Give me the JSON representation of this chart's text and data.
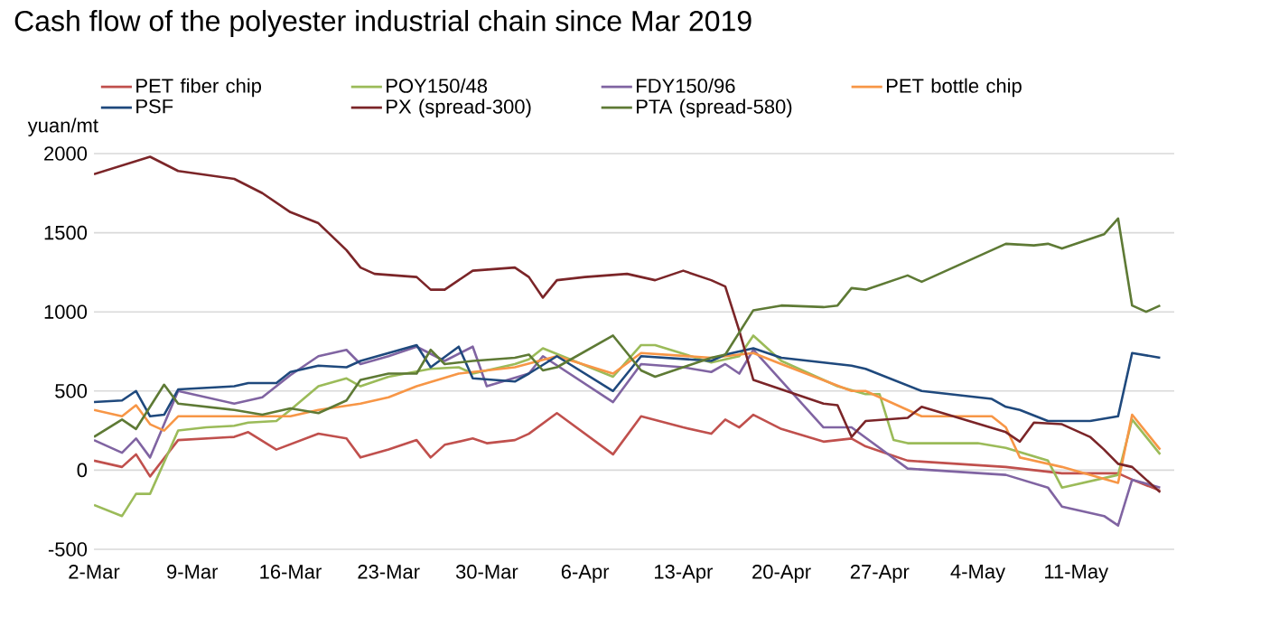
{
  "chart_data": {
    "type": "line",
    "title": "Cash flow of the polyester industrial chain since Mar 2019",
    "ylabel": "yuan/mt",
    "xlim": [
      "2019-03-02",
      "2019-05-18"
    ],
    "xticks": [
      {
        "value": "2019-03-02",
        "label": "2-Mar"
      },
      {
        "value": "2019-03-09",
        "label": "9-Mar"
      },
      {
        "value": "2019-03-16",
        "label": "16-Mar"
      },
      {
        "value": "2019-03-23",
        "label": "23-Mar"
      },
      {
        "value": "2019-03-30",
        "label": "30-Mar"
      },
      {
        "value": "2019-04-06",
        "label": "6-Apr"
      },
      {
        "value": "2019-04-13",
        "label": "13-Apr"
      },
      {
        "value": "2019-04-20",
        "label": "20-Apr"
      },
      {
        "value": "2019-04-27",
        "label": "27-Apr"
      },
      {
        "value": "2019-05-04",
        "label": "4-May"
      },
      {
        "value": "2019-05-11",
        "label": "11-May"
      }
    ],
    "ylim": [
      -500,
      2000
    ],
    "yticks": [
      -500,
      0,
      500,
      1000,
      1500,
      2000
    ],
    "grid": "y",
    "legend": "top",
    "marker": "none",
    "line_style": "solid",
    "series": [
      {
        "name": "PET fiber chip",
        "color": "#c0504d",
        "x": [
          "2019-03-02",
          "2019-03-04",
          "2019-03-05",
          "2019-03-06",
          "2019-03-08",
          "2019-03-12",
          "2019-03-13",
          "2019-03-15",
          "2019-03-18",
          "2019-03-20",
          "2019-03-21",
          "2019-03-23",
          "2019-03-25",
          "2019-03-26",
          "2019-03-27",
          "2019-03-29",
          "2019-03-30",
          "2019-04-01",
          "2019-04-02",
          "2019-04-04",
          "2019-04-08",
          "2019-04-10",
          "2019-04-13",
          "2019-04-15",
          "2019-04-16",
          "2019-04-17",
          "2019-04-18",
          "2019-04-20",
          "2019-04-23",
          "2019-04-25",
          "2019-04-26",
          "2019-04-29",
          "2019-05-06",
          "2019-05-10",
          "2019-05-14",
          "2019-05-15",
          "2019-05-17"
        ],
        "values": [
          60,
          20,
          100,
          -40,
          190,
          210,
          240,
          130,
          230,
          200,
          80,
          130,
          190,
          80,
          160,
          200,
          170,
          190,
          230,
          360,
          100,
          340,
          270,
          230,
          320,
          270,
          350,
          260,
          180,
          200,
          150,
          60,
          20,
          -20,
          -20,
          -60,
          -130
        ]
      },
      {
        "name": "POY150/48",
        "color": "#9bbb59",
        "x": [
          "2019-03-02",
          "2019-03-04",
          "2019-03-05",
          "2019-03-06",
          "2019-03-08",
          "2019-03-10",
          "2019-03-12",
          "2019-03-13",
          "2019-03-15",
          "2019-03-16",
          "2019-03-18",
          "2019-03-20",
          "2019-03-21",
          "2019-03-23",
          "2019-03-26",
          "2019-03-28",
          "2019-03-29",
          "2019-04-01",
          "2019-04-02",
          "2019-04-03",
          "2019-04-08",
          "2019-04-10",
          "2019-04-11",
          "2019-04-15",
          "2019-04-17",
          "2019-04-18",
          "2019-04-20",
          "2019-04-23",
          "2019-04-24",
          "2019-04-26",
          "2019-04-27",
          "2019-04-28",
          "2019-04-29",
          "2019-05-04",
          "2019-05-06",
          "2019-05-09",
          "2019-05-10",
          "2019-05-14",
          "2019-05-15",
          "2019-05-17"
        ],
        "values": [
          -220,
          -290,
          -150,
          -150,
          250,
          270,
          280,
          300,
          310,
          380,
          530,
          580,
          530,
          590,
          640,
          650,
          610,
          670,
          700,
          770,
          590,
          790,
          790,
          680,
          720,
          850,
          690,
          570,
          530,
          480,
          480,
          190,
          170,
          170,
          140,
          60,
          -110,
          -30,
          320,
          100
        ]
      },
      {
        "name": "FDY150/96",
        "color": "#8064a2",
        "x": [
          "2019-03-02",
          "2019-03-04",
          "2019-03-05",
          "2019-03-06",
          "2019-03-08",
          "2019-03-12",
          "2019-03-14",
          "2019-03-16",
          "2019-03-18",
          "2019-03-20",
          "2019-03-21",
          "2019-03-23",
          "2019-03-25",
          "2019-03-27",
          "2019-03-29",
          "2019-03-30",
          "2019-04-02",
          "2019-04-03",
          "2019-04-08",
          "2019-04-10",
          "2019-04-13",
          "2019-04-15",
          "2019-04-16",
          "2019-04-17",
          "2019-04-18",
          "2019-04-23",
          "2019-04-25",
          "2019-04-29",
          "2019-05-06",
          "2019-05-09",
          "2019-05-10",
          "2019-05-13",
          "2019-05-14",
          "2019-05-15",
          "2019-05-17"
        ],
        "values": [
          190,
          110,
          200,
          80,
          500,
          420,
          460,
          600,
          720,
          760,
          670,
          720,
          780,
          690,
          780,
          530,
          610,
          720,
          430,
          670,
          650,
          620,
          670,
          610,
          760,
          270,
          270,
          10,
          -30,
          -110,
          -230,
          -290,
          -350,
          -60,
          -110
        ]
      },
      {
        "name": "PET bottle chip",
        "color": "#f79646",
        "x": [
          "2019-03-02",
          "2019-03-04",
          "2019-03-05",
          "2019-03-06",
          "2019-03-07",
          "2019-03-08",
          "2019-03-12",
          "2019-03-16",
          "2019-03-18",
          "2019-03-21",
          "2019-03-23",
          "2019-03-25",
          "2019-03-28",
          "2019-04-01",
          "2019-04-04",
          "2019-04-08",
          "2019-04-10",
          "2019-04-15",
          "2019-04-18",
          "2019-04-20",
          "2019-04-25",
          "2019-04-26",
          "2019-04-29",
          "2019-04-30",
          "2019-05-05",
          "2019-05-06",
          "2019-05-07",
          "2019-05-10",
          "2019-05-14",
          "2019-05-15",
          "2019-05-17"
        ],
        "values": [
          380,
          340,
          410,
          290,
          250,
          340,
          340,
          340,
          380,
          420,
          460,
          530,
          610,
          650,
          720,
          610,
          740,
          710,
          740,
          670,
          500,
          500,
          380,
          340,
          340,
          270,
          80,
          20,
          -80,
          350,
          130
        ]
      },
      {
        "name": "PSF",
        "color": "#1f497d",
        "x": [
          "2019-03-02",
          "2019-03-04",
          "2019-03-05",
          "2019-03-06",
          "2019-03-07",
          "2019-03-08",
          "2019-03-12",
          "2019-03-13",
          "2019-03-15",
          "2019-03-16",
          "2019-03-18",
          "2019-03-20",
          "2019-03-21",
          "2019-03-23",
          "2019-03-25",
          "2019-03-26",
          "2019-03-28",
          "2019-03-29",
          "2019-04-01",
          "2019-04-02",
          "2019-04-04",
          "2019-04-08",
          "2019-04-10",
          "2019-04-15",
          "2019-04-16",
          "2019-04-18",
          "2019-04-20",
          "2019-04-25",
          "2019-04-26",
          "2019-04-30",
          "2019-05-05",
          "2019-05-06",
          "2019-05-07",
          "2019-05-09",
          "2019-05-12",
          "2019-05-14",
          "2019-05-15",
          "2019-05-17"
        ],
        "values": [
          430,
          440,
          500,
          340,
          350,
          510,
          530,
          550,
          550,
          620,
          660,
          650,
          690,
          740,
          790,
          650,
          780,
          580,
          560,
          610,
          720,
          500,
          720,
          690,
          730,
          770,
          710,
          660,
          640,
          500,
          450,
          400,
          380,
          310,
          310,
          340,
          740,
          710
        ]
      },
      {
        "name": "PX (spread-300)",
        "color": "#7b2528",
        "x": [
          "2019-03-02",
          "2019-03-06",
          "2019-03-08",
          "2019-03-12",
          "2019-03-14",
          "2019-03-16",
          "2019-03-18",
          "2019-03-20",
          "2019-03-21",
          "2019-03-22",
          "2019-03-25",
          "2019-03-26",
          "2019-03-27",
          "2019-03-29",
          "2019-04-01",
          "2019-04-02",
          "2019-04-03",
          "2019-04-04",
          "2019-04-06",
          "2019-04-09",
          "2019-04-11",
          "2019-04-13",
          "2019-04-15",
          "2019-04-16",
          "2019-04-17",
          "2019-04-18",
          "2019-04-20",
          "2019-04-23",
          "2019-04-24",
          "2019-04-25",
          "2019-04-26",
          "2019-04-29",
          "2019-04-30",
          "2019-05-06",
          "2019-05-07",
          "2019-05-08",
          "2019-05-10",
          "2019-05-12",
          "2019-05-13",
          "2019-05-14",
          "2019-05-15",
          "2019-05-16",
          "2019-05-17"
        ],
        "values": [
          1870,
          1980,
          1890,
          1840,
          1750,
          1630,
          1560,
          1390,
          1280,
          1240,
          1220,
          1140,
          1140,
          1260,
          1280,
          1220,
          1090,
          1200,
          1220,
          1240,
          1200,
          1260,
          1200,
          1160,
          880,
          570,
          510,
          420,
          410,
          210,
          310,
          330,
          400,
          240,
          180,
          300,
          290,
          210,
          130,
          40,
          20,
          -60,
          -140
        ]
      },
      {
        "name": "PTA (spread-580)",
        "color": "#5e7a35",
        "x": [
          "2019-03-02",
          "2019-03-04",
          "2019-03-05",
          "2019-03-07",
          "2019-03-08",
          "2019-03-12",
          "2019-03-14",
          "2019-03-16",
          "2019-03-18",
          "2019-03-20",
          "2019-03-21",
          "2019-03-23",
          "2019-03-25",
          "2019-03-26",
          "2019-03-27",
          "2019-03-29",
          "2019-04-01",
          "2019-04-02",
          "2019-04-03",
          "2019-04-04",
          "2019-04-08",
          "2019-04-10",
          "2019-04-11",
          "2019-04-15",
          "2019-04-16",
          "2019-04-18",
          "2019-04-20",
          "2019-04-23",
          "2019-04-24",
          "2019-04-25",
          "2019-04-26",
          "2019-04-29",
          "2019-04-30",
          "2019-05-06",
          "2019-05-08",
          "2019-05-09",
          "2019-05-10",
          "2019-05-13",
          "2019-05-14",
          "2019-05-15",
          "2019-05-16",
          "2019-05-17"
        ],
        "values": [
          210,
          320,
          260,
          540,
          420,
          380,
          350,
          390,
          360,
          440,
          570,
          610,
          610,
          760,
          670,
          690,
          710,
          730,
          630,
          650,
          850,
          630,
          590,
          710,
          730,
          1010,
          1040,
          1030,
          1040,
          1150,
          1140,
          1230,
          1190,
          1430,
          1420,
          1430,
          1400,
          1490,
          1590,
          1040,
          1000,
          1040
        ]
      }
    ]
  }
}
